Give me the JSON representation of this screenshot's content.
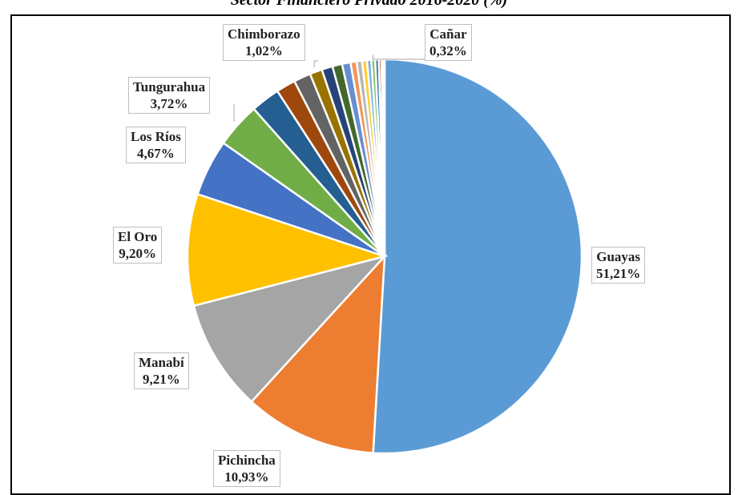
{
  "chart_data": {
    "type": "pie",
    "title": "Sector Financiero Privado 2016-2020 (%)",
    "slices": [
      {
        "name": "Guayas",
        "value": 51.21,
        "label": "51,21%",
        "color": "#5b9bd5",
        "labeled": true
      },
      {
        "name": "Pichincha",
        "value": 10.93,
        "label": "10,93%",
        "color": "#ed7d31",
        "labeled": true
      },
      {
        "name": "Manabí",
        "value": 9.21,
        "label": "9,21%",
        "color": "#a5a5a5",
        "labeled": true
      },
      {
        "name": "El Oro",
        "value": 9.2,
        "label": "9,20%",
        "color": "#ffc000",
        "labeled": true
      },
      {
        "name": "Los Ríos",
        "value": 4.67,
        "label": "4,67%",
        "color": "#4472c4",
        "labeled": true
      },
      {
        "name": "Tungurahua",
        "value": 3.72,
        "label": "3,72%",
        "color": "#70ad47",
        "labeled": true
      },
      {
        "name": "",
        "value": 2.4,
        "color": "#255e91",
        "labeled": false
      },
      {
        "name": "",
        "value": 1.6,
        "color": "#9e480e",
        "labeled": false
      },
      {
        "name": "",
        "value": 1.4,
        "color": "#636363",
        "labeled": false
      },
      {
        "name": "Chimborazo",
        "value": 1.02,
        "label": "1,02%",
        "color": "#997300",
        "labeled": true
      },
      {
        "name": "",
        "value": 0.9,
        "color": "#264478",
        "labeled": false
      },
      {
        "name": "",
        "value": 0.8,
        "color": "#43682b",
        "labeled": false
      },
      {
        "name": "",
        "value": 0.7,
        "color": "#698ed0",
        "labeled": false
      },
      {
        "name": "",
        "value": 0.5,
        "color": "#f1975a",
        "labeled": false
      },
      {
        "name": "",
        "value": 0.45,
        "color": "#b7b7b7",
        "labeled": false
      },
      {
        "name": "",
        "value": 0.4,
        "color": "#ffcd33",
        "labeled": false
      },
      {
        "name": "",
        "value": 0.35,
        "color": "#7cafdd",
        "labeled": false
      },
      {
        "name": "Cañar",
        "value": 0.32,
        "label": "0,32%",
        "color": "#8cc168",
        "labeled": true
      },
      {
        "name": "",
        "value": 0.3,
        "color": "#2e75b6",
        "labeled": false
      },
      {
        "name": "",
        "value": 0.22,
        "color": "#c55a11",
        "labeled": false
      },
      {
        "name": "",
        "value": 0.15,
        "color": "#7f7f7f",
        "labeled": false
      },
      {
        "name": "",
        "value": 0.1,
        "color": "#bf9000",
        "labeled": false
      }
    ]
  }
}
